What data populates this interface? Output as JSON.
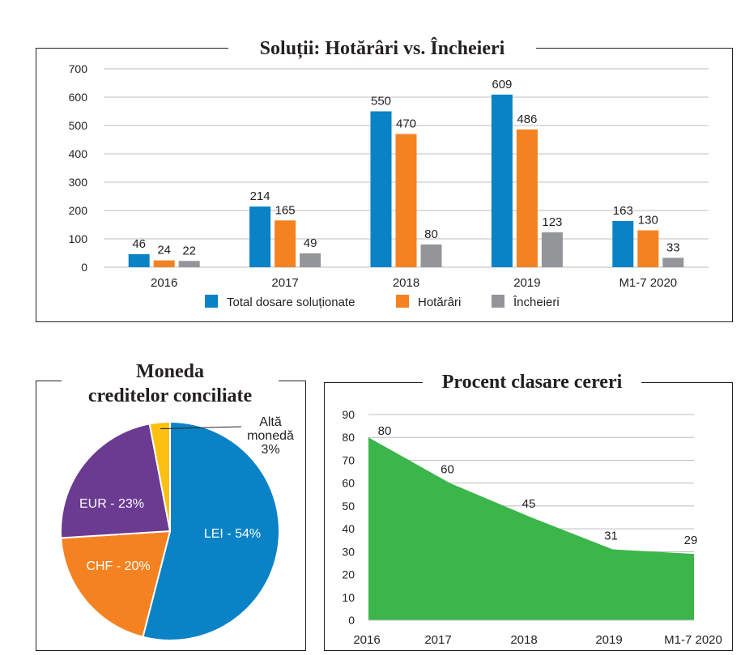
{
  "charts": {
    "bar": {
      "title": "Soluții: Hotărâri vs. Încheieri",
      "legend_position": "bottom",
      "chart_data": {
        "type": "bar",
        "title": "Soluții: Hotărâri vs. Încheieri",
        "categories": [
          "2016",
          "2017",
          "2018",
          "2019",
          "M1-7 2020"
        ],
        "series": [
          {
            "name": "Total dosare soluționate",
            "values": [
              46,
              214,
              550,
              609,
              163
            ],
            "color": "#0a82c6"
          },
          {
            "name": "Hotărâri",
            "values": [
              24,
              165,
              470,
              486,
              130
            ],
            "color": "#f58220"
          },
          {
            "name": "Încheieri",
            "values": [
              22,
              49,
              80,
              123,
              33
            ],
            "color": "#939598"
          }
        ],
        "ylim": [
          0,
          700
        ],
        "yticks": [
          0,
          100,
          200,
          300,
          400,
          500,
          600,
          700
        ],
        "grid": true
      }
    },
    "pie": {
      "title_line1": "Moneda",
      "title_line2": "creditelor conciliate",
      "chart_data": {
        "type": "pie",
        "title": "Moneda creditelor conciliate",
        "slices": [
          {
            "label": "LEI - 54%",
            "value": 54,
            "color": "#0a82c6"
          },
          {
            "label": "CHF - 20%",
            "value": 20,
            "color": "#f58220"
          },
          {
            "label": "EUR - 23%",
            "value": 23,
            "color": "#6b3a91"
          },
          {
            "label_lines": [
              "Altă",
              "monedă",
              "3%"
            ],
            "value": 3,
            "color": "#fdc010"
          }
        ]
      }
    },
    "area": {
      "title": "Procent clasare cereri",
      "chart_data": {
        "type": "area",
        "title": "Procent clasare cereri",
        "categories": [
          "2016",
          "2017",
          "2018",
          "2019",
          "M1-7 2020"
        ],
        "values": [
          80,
          60,
          45,
          31,
          29
        ],
        "color": "#3cb54a",
        "ylim": [
          0,
          90
        ],
        "yticks": [
          0,
          10,
          20,
          30,
          40,
          50,
          60,
          70,
          80,
          90
        ],
        "grid": true
      }
    }
  }
}
